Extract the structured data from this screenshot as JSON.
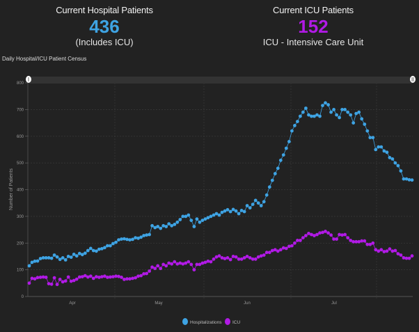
{
  "kpis": {
    "hospital": {
      "title": "Current Hospital Patients",
      "value": "436",
      "subtitle": "(Includes ICU)",
      "color": "#3ea3e3"
    },
    "icu": {
      "title": "Current ICU Patients",
      "value": "152",
      "subtitle": "ICU - Intensive Care Unit",
      "color": "#b11ae6"
    }
  },
  "colors": {
    "background": "#222222",
    "hospitalizations": "#3ea3e3",
    "icu": "#b11ae6",
    "grid": "#444444",
    "range_bar": "#333333"
  },
  "chart_data": {
    "type": "line",
    "title": "Daily Hospital/ICU Patient Census",
    "xlabel": "",
    "ylabel": "Number of Patients",
    "ylim": [
      0,
      800
    ],
    "yticks": [
      0,
      100,
      200,
      300,
      400,
      500,
      600,
      700,
      800
    ],
    "xticks": [
      "Apr",
      "May",
      "Jun",
      "Jul"
    ],
    "x_start": "Mar 20",
    "x_end": "Aug 9",
    "grid": true,
    "legend_position": "bottom-center",
    "series": [
      {
        "name": "Hospitalizations",
        "values": [
          115,
          128,
          132,
          133,
          142,
          145,
          145,
          145,
          143,
          155,
          148,
          139,
          145,
          137,
          150,
          147,
          158,
          152,
          161,
          157,
          162,
          172,
          180,
          172,
          170,
          177,
          179,
          183,
          190,
          190,
          198,
          203,
          212,
          215,
          216,
          214,
          212,
          214,
          220,
          218,
          222,
          228,
          230,
          232,
          265,
          258,
          262,
          255,
          265,
          262,
          272,
          265,
          270,
          278,
          288,
          300,
          300,
          305,
          285,
          262,
          290,
          278,
          285,
          290,
          295,
          300,
          305,
          310,
          305,
          315,
          320,
          325,
          318,
          326,
          320,
          310,
          322,
          318,
          340,
          332,
          345,
          360,
          350,
          340,
          355,
          380,
          410,
          435,
          460,
          480,
          510,
          530,
          555,
          580,
          620,
          640,
          655,
          675,
          690,
          705,
          680,
          675,
          675,
          680,
          675,
          715,
          725,
          718,
          690,
          700,
          680,
          670,
          700,
          700,
          690,
          680,
          650,
          685,
          690,
          665,
          645,
          620,
          595,
          595,
          550,
          560,
          560,
          545,
          540,
          520,
          515,
          500,
          490,
          470,
          440,
          440,
          437,
          436
        ],
        "color": "#3ea3e3"
      },
      {
        "name": "ICU",
        "values": [
          50,
          68,
          66,
          71,
          72,
          73,
          72,
          48,
          46,
          70,
          45,
          64,
          55,
          58,
          73,
          57,
          60,
          65,
          73,
          74,
          78,
          73,
          76,
          68,
          74,
          72,
          74,
          76,
          72,
          73,
          74,
          76,
          75,
          72,
          64,
          66,
          66,
          68,
          70,
          76,
          78,
          85,
          86,
          95,
          110,
          105,
          115,
          105,
          120,
          115,
          125,
          122,
          130,
          122,
          125,
          122,
          125,
          130,
          120,
          100,
          120,
          120,
          125,
          128,
          132,
          130,
          140,
          148,
          152,
          145,
          142,
          145,
          138,
          150,
          148,
          140,
          140,
          145,
          150,
          145,
          140,
          140,
          148,
          152,
          155,
          165,
          165,
          172,
          175,
          170,
          175,
          182,
          180,
          188,
          190,
          200,
          210,
          210,
          220,
          228,
          236,
          232,
          228,
          232,
          238,
          240,
          244,
          238,
          230,
          215,
          215,
          232,
          230,
          232,
          220,
          210,
          205,
          205,
          205,
          208,
          208,
          195,
          195,
          200,
          175,
          170,
          175,
          168,
          170,
          178,
          170,
          172,
          160,
          155,
          145,
          143,
          143,
          152
        ],
        "color": "#b11ae6"
      }
    ]
  },
  "range_slider": {
    "start_handle_icon": "slider-handle-icon",
    "end_handle_icon": "slider-handle-icon"
  }
}
